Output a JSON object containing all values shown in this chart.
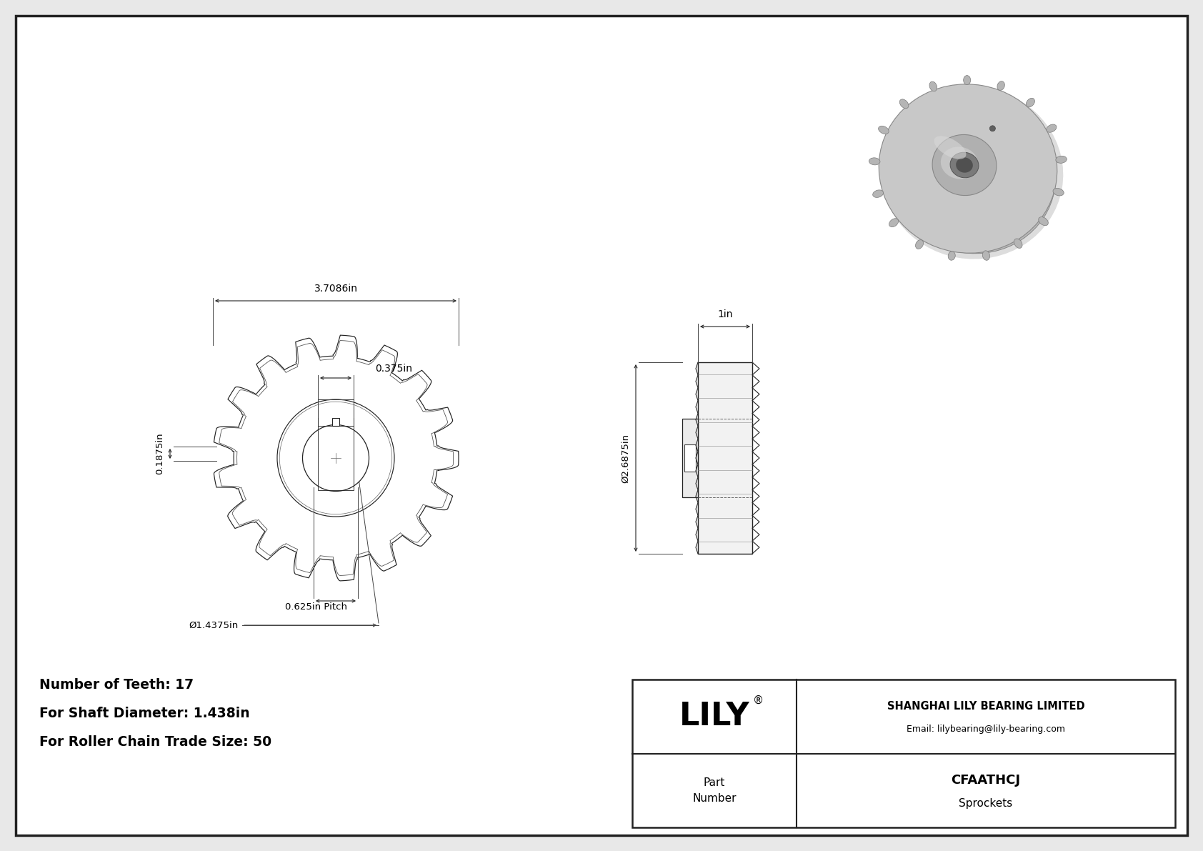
{
  "bg_color": "#e8e8e8",
  "drawing_bg": "#ffffff",
  "border_color": "#222222",
  "line_color": "#444444",
  "dim_color": "#333333",
  "text_color": "#000000",
  "num_teeth": 17,
  "shaft_dia": "1.438in",
  "roller_chain_size": "50",
  "outer_dia_label": "3.7086in",
  "hub_dia_label": "0.375in",
  "offset_label": "0.1875in",
  "side_width_label": "1in",
  "overall_dia_label": "Ø2.6875in",
  "pitch_label": "0.625in Pitch",
  "bore_dia_label": "Ø1.4375in",
  "company": "SHANGHAI LILY BEARING LIMITED",
  "email": "Email: lilybearing@lily-bearing.com",
  "part_number": "CFAATHCJ",
  "category": "Sprockets",
  "logo": "LILY",
  "font_dim": 9.5,
  "font_info": 13,
  "info_line1": "Number of Teeth: 17",
  "info_line2": "For Shaft Diameter: 1.438in",
  "info_line3": "For Roller Chain Trade Size: 50"
}
